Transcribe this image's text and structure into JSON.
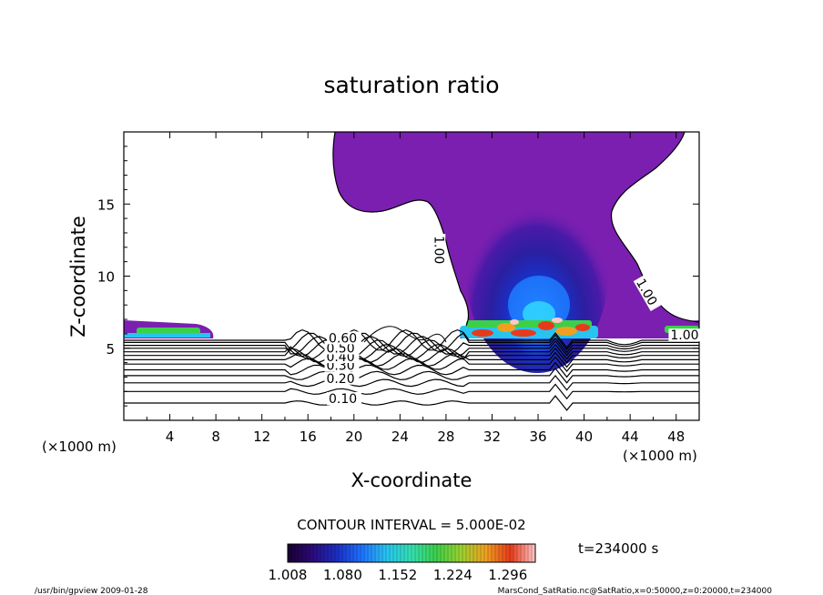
{
  "chart_data": {
    "type": "contour",
    "title": "saturation ratio",
    "xlabel": "X-coordinate",
    "ylabel": "Z-coordinate",
    "x_unit": "(×1000 m)",
    "xlim": [
      0,
      50
    ],
    "ylim": [
      0,
      20
    ],
    "x_ticks": [
      4,
      8,
      12,
      16,
      20,
      24,
      28,
      32,
      36,
      40,
      44,
      48
    ],
    "y_ticks": [
      5,
      10,
      15
    ],
    "contour_interval_text": "CONTOUR INTERVAL = 5.000E-02",
    "contour_labels": [
      {
        "text": "0.10",
        "x": 17.8,
        "y": 1.2
      },
      {
        "text": "0.20",
        "x": 17.6,
        "y": 2.6
      },
      {
        "text": "0.30",
        "x": 17.6,
        "y": 3.5
      },
      {
        "text": "0.40",
        "x": 17.6,
        "y": 4.1
      },
      {
        "text": "0.50",
        "x": 17.6,
        "y": 4.7
      },
      {
        "text": "0.60",
        "x": 17.8,
        "y": 5.4
      },
      {
        "text": "1.00",
        "x": 27.0,
        "y": 12.8
      },
      {
        "text": "1.00",
        "x": 44.5,
        "y": 9.6
      },
      {
        "text": "1.00",
        "x": 47.5,
        "y": 5.6
      }
    ],
    "colorbar": {
      "min": 1.008,
      "max": 1.332,
      "tick_labels": [
        "1.008",
        "1.080",
        "1.152",
        "1.224",
        "1.296"
      ],
      "colormap": [
        "#1a0030",
        "#2b0a7a",
        "#1a2fc4",
        "#1f72ff",
        "#27c4f0",
        "#33e0b0",
        "#3ccf4a",
        "#9bd12e",
        "#f0a020",
        "#e83a1a",
        "#ffc8c8"
      ]
    },
    "time_label": "t=234000 s",
    "region_colors": {
      "purple": "#7a1fb0",
      "deep_blue": "#1a35c8",
      "red": "#e03020",
      "cyan": "#28c8e8",
      "green": "#38d050",
      "contour": "#000000"
    }
  },
  "footer": {
    "left": "/usr/bin/gpview   2009-01-28",
    "right": "MarsCond_SatRatio.nc@SatRatio,x=0:50000,z=0:20000,t=234000"
  }
}
